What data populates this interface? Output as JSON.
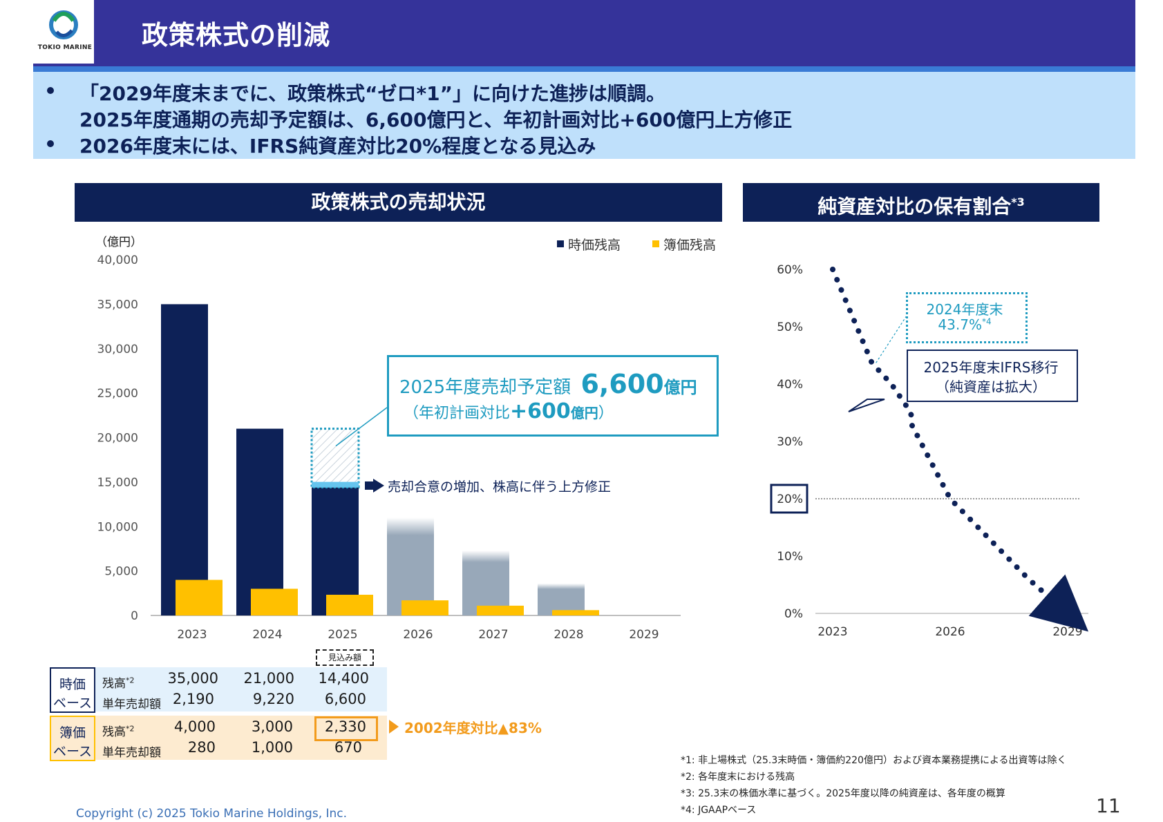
{
  "header": {
    "title": "政策株式の削減",
    "logo_text": "TOKIO MARINE"
  },
  "summary": {
    "line1": "「2029年度末までに、政策株式“ゼロ*1”」に向けた進捗は順調。",
    "line2": "2025年度通期の売却予定額は、6,600億円と、年初計画対比+600億円上方修正",
    "line3": "2026年度末には、IFRS純資産対比20%程度となる見込み"
  },
  "left_panel": {
    "title": "政策株式の売却状況",
    "unit": "（億円）",
    "legend": [
      {
        "label": "時価残高",
        "color": "#0d2157"
      },
      {
        "label": "簿価残高",
        "color": "#ffc000"
      }
    ],
    "callout": {
      "line1_prefix": "2025年度売却予定額",
      "line1_big": "6,600",
      "line1_unit": "億円",
      "line2_prefix": "（年初計画対比",
      "line2_big": "+600",
      "line2_unit": "億円",
      "line2_suffix": "）"
    },
    "revision_note": "売却合意の増加、株高に伴う上方修正",
    "forecast_tag": "見込み額"
  },
  "chart_data": [
    {
      "type": "bar",
      "title": "政策株式の売却状況",
      "ylabel": "（億円）",
      "ylim": [
        0,
        40000
      ],
      "yticks": [
        0,
        5000,
        10000,
        15000,
        20000,
        25000,
        30000,
        35000,
        40000
      ],
      "ytick_labels": [
        "0",
        "5,000",
        "10,000",
        "15,000",
        "20,000",
        "25,000",
        "30,000",
        "35,000",
        "40,000"
      ],
      "categories": [
        "2023",
        "2024",
        "2025",
        "2026",
        "2027",
        "2028",
        "2029"
      ],
      "series": [
        {
          "name": "時価残高",
          "values": [
            35000,
            21000,
            14400,
            11000,
            7300,
            3600,
            0
          ]
        },
        {
          "name": "簿価残高",
          "values": [
            4000,
            3000,
            2330,
            1700,
            1100,
            600,
            0
          ]
        }
      ],
      "initial_plan_2025_market_value": 21000
    },
    {
      "type": "line",
      "title": "純資産対比の保有割合*3",
      "ylim": [
        0,
        60
      ],
      "yticks": [
        0,
        10,
        20,
        30,
        40,
        50,
        60
      ],
      "ytick_labels": [
        "0%",
        "10%",
        "20%",
        "30%",
        "40%",
        "50%",
        "60%"
      ],
      "xlabels": [
        "2023",
        "2026",
        "2029"
      ],
      "x": [
        2023,
        2024,
        2024.5,
        2025,
        2025.01,
        2026,
        2027,
        2028,
        2029
      ],
      "y": [
        60,
        43.7,
        40,
        35,
        33,
        20,
        13,
        6,
        0
      ],
      "reference_line": 20,
      "annotations": {
        "a2024_line1": "2024年度末",
        "a2024_value": "43.7%",
        "a2024_note": "*4",
        "ifrs_line1": "2025年度末IFRS移行",
        "ifrs_line2": "（純資産は拡大）"
      }
    }
  ],
  "right_panel": {
    "title": "純資産対比の保有割合",
    "title_sup": "*3"
  },
  "table": {
    "market": {
      "label1": "時価",
      "label2": "ベース",
      "rows": [
        {
          "name": "残高",
          "sup": "*2",
          "values": [
            "35,000",
            "21,000",
            "14,400"
          ]
        },
        {
          "name": "単年売却額",
          "sup": "",
          "values": [
            "2,190",
            "9,220",
            "6,600"
          ]
        }
      ]
    },
    "book": {
      "label1": "簿価",
      "label2": "ベース",
      "rows": [
        {
          "name": "残高",
          "sup": "*2",
          "values": [
            "4,000",
            "3,000",
            "2,330"
          ]
        },
        {
          "name": "単年売却額",
          "sup": "",
          "values": [
            "280",
            "1,000",
            "670"
          ]
        }
      ]
    },
    "reduction_note": "2002年度対比▲83%"
  },
  "footnotes": [
    "*1: 非上場株式（25.3末時価・簿価約220億円）および資本業務提携による出資等は除く",
    "*2: 各年度末における残高",
    "*3: 25.3末の株価水準に基づく。2025年度以降の純資産は、各年度の概算",
    "*4: JGAAPベース"
  ],
  "copyright": "Copyright (c) 2025 Tokio Marine Holdings, Inc.",
  "page_number": "11",
  "colors": {
    "navy": "#0d2157",
    "gold": "#ffc000",
    "teal": "#1e9bc0",
    "header": "#35339a",
    "light_blue": "#bfe0fb",
    "forecast_grey": "#98a8b9"
  }
}
